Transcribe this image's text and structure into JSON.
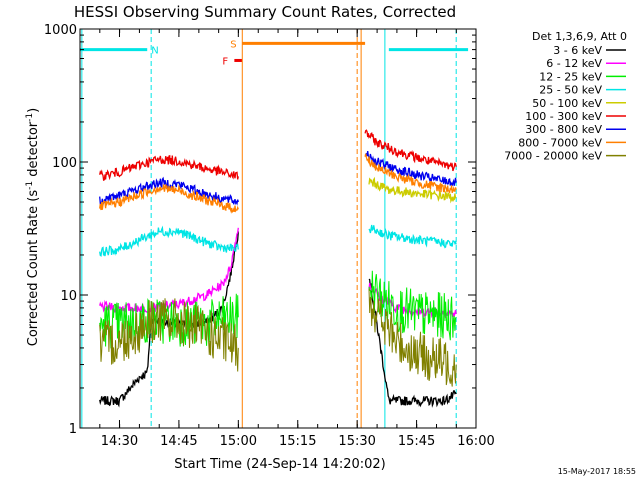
{
  "chart_data": {
    "type": "line",
    "title": "HESSI Observing Summary Count Rates, Corrected",
    "xlabel": "Start Time (24-Sep-14 14:20:02)",
    "ylabel": "Corrected Count Rate (s",
    "ylabel_sup1": "-1",
    "ylabel_mid": " detector",
    "ylabel_sup2": "-1",
    "ylabel_end": ")",
    "yscale": "log",
    "ylim": [
      1,
      1000
    ],
    "xlim": [
      "14:20:02",
      "16:00:00"
    ],
    "x_ticks": [
      "14:30",
      "14:45",
      "15:00",
      "15:15",
      "15:30",
      "15:45",
      "16:00"
    ],
    "y_ticks": [
      "1",
      "10",
      "100",
      "1000"
    ],
    "legend_header": "Det 1,3,6,9, Att 0",
    "legend_placement": "right",
    "timestamp": "15-May-2017 18:55",
    "flags": [
      {
        "label": "N",
        "color": "#00e5e5",
        "y": 700,
        "segments": [
          [
            "14:20",
            "14:37"
          ],
          [
            "15:38",
            "15:58"
          ]
        ]
      },
      {
        "label": "S",
        "color": "#ff7f00",
        "y": 780,
        "segments": [
          [
            "15:01",
            "15:32"
          ]
        ]
      },
      {
        "label": "F",
        "color": "#ee0000",
        "y": 580,
        "segments": [
          [
            "14:59",
            "15:01"
          ]
        ]
      }
    ],
    "time_markers": [
      {
        "time": "14:20:30",
        "color": "#00e5e5",
        "style": "solid"
      },
      {
        "time": "14:38",
        "color": "#00e5e5",
        "style": "dashed"
      },
      {
        "time": "15:01",
        "color": "#ff7f00",
        "style": "solid"
      },
      {
        "time": "15:30",
        "color": "#ff7f00",
        "style": "dashed"
      },
      {
        "time": "15:31",
        "color": "#ff7f00",
        "style": "solid"
      },
      {
        "time": "15:37",
        "color": "#00e5e5",
        "style": "solid"
      },
      {
        "time": "15:55",
        "color": "#00e5e5",
        "style": "dashed"
      }
    ],
    "series": [
      {
        "name": "3 - 6 keV",
        "color": "#000000",
        "points": [
          [
            "14:25",
            1.6
          ],
          [
            "14:30",
            1.6
          ],
          [
            "14:35",
            2.4
          ],
          [
            "14:37",
            2.6
          ],
          [
            "14:38",
            6.5
          ],
          [
            "14:45",
            6.0
          ],
          [
            "14:52",
            6.2
          ],
          [
            "14:56",
            8.0
          ],
          [
            "14:58",
            14
          ],
          [
            "15:00",
            30
          ],
          [
            "15:33",
            14
          ],
          [
            "15:35",
            6
          ],
          [
            "15:37",
            2.5
          ],
          [
            "15:38",
            1.6
          ],
          [
            "15:45",
            1.6
          ],
          [
            "15:52",
            1.6
          ],
          [
            "15:55",
            1.8
          ]
        ]
      },
      {
        "name": "6 - 12 keV",
        "color": "#ff00ff",
        "points": [
          [
            "14:25",
            8.2
          ],
          [
            "14:30",
            8.0
          ],
          [
            "14:38",
            8.0
          ],
          [
            "14:45",
            8.5
          ],
          [
            "14:52",
            10
          ],
          [
            "14:56",
            12
          ],
          [
            "14:58",
            16
          ],
          [
            "15:00",
            32
          ],
          [
            "15:33",
            12
          ],
          [
            "15:36",
            9.5
          ],
          [
            "15:40",
            8
          ],
          [
            "15:45",
            7.5
          ],
          [
            "15:50",
            7.5
          ],
          [
            "15:55",
            7.2
          ]
        ]
      },
      {
        "name": "12 - 25 keV",
        "color": "#00ee00",
        "points": [
          [
            "14:25",
            6.0
          ],
          [
            "14:30",
            6.0
          ],
          [
            "14:38",
            6.5
          ],
          [
            "14:45",
            6.2
          ],
          [
            "14:52",
            6.0
          ],
          [
            "14:56",
            6.5
          ],
          [
            "15:00",
            6.8
          ],
          [
            "15:33",
            12
          ],
          [
            "15:36",
            9.5
          ],
          [
            "15:40",
            8
          ],
          [
            "15:45",
            7.2
          ],
          [
            "15:50",
            7.0
          ],
          [
            "15:55",
            6.8
          ]
        ]
      },
      {
        "name": "25 - 50 keV",
        "color": "#00e5e5",
        "points": [
          [
            "14:25",
            21
          ],
          [
            "14:30",
            22
          ],
          [
            "14:35",
            26
          ],
          [
            "14:40",
            30
          ],
          [
            "14:45",
            30
          ],
          [
            "14:50",
            26
          ],
          [
            "14:55",
            23
          ],
          [
            "15:00",
            22
          ],
          [
            "15:33",
            32
          ],
          [
            "15:38",
            28
          ],
          [
            "15:45",
            26
          ],
          [
            "15:50",
            25
          ],
          [
            "15:55",
            24
          ]
        ]
      },
      {
        "name": "50 - 100 keV",
        "color": "#cccc00",
        "points": [
          [
            "15:33",
            72
          ],
          [
            "15:38",
            62
          ],
          [
            "15:45",
            58
          ],
          [
            "15:50",
            56
          ],
          [
            "15:55",
            54
          ]
        ]
      },
      {
        "name": "100 - 300 keV",
        "color": "#ee0000",
        "points": [
          [
            "14:25",
            78
          ],
          [
            "14:30",
            84
          ],
          [
            "14:35",
            95
          ],
          [
            "14:40",
            105
          ],
          [
            "14:45",
            102
          ],
          [
            "14:50",
            92
          ],
          [
            "14:55",
            85
          ],
          [
            "15:00",
            78
          ],
          [
            "15:32",
            170
          ],
          [
            "15:35",
            140
          ],
          [
            "15:40",
            120
          ],
          [
            "15:45",
            108
          ],
          [
            "15:50",
            98
          ],
          [
            "15:55",
            92
          ]
        ]
      },
      {
        "name": "300 - 800 keV",
        "color": "#0000ee",
        "points": [
          [
            "14:25",
            52
          ],
          [
            "14:30",
            56
          ],
          [
            "14:35",
            63
          ],
          [
            "14:40",
            70
          ],
          [
            "14:45",
            68
          ],
          [
            "14:50",
            60
          ],
          [
            "14:55",
            54
          ],
          [
            "15:00",
            50
          ],
          [
            "15:32",
            120
          ],
          [
            "15:35",
            100
          ],
          [
            "15:40",
            88
          ],
          [
            "15:45",
            80
          ],
          [
            "15:50",
            74
          ],
          [
            "15:55",
            70
          ]
        ]
      },
      {
        "name": "800 - 7000 keV",
        "color": "#ff7f00",
        "points": [
          [
            "14:25",
            46
          ],
          [
            "14:30",
            50
          ],
          [
            "14:35",
            57
          ],
          [
            "14:40",
            64
          ],
          [
            "14:45",
            61
          ],
          [
            "14:50",
            54
          ],
          [
            "14:55",
            48
          ],
          [
            "15:00",
            44
          ],
          [
            "15:32",
            110
          ],
          [
            "15:35",
            90
          ],
          [
            "15:40",
            78
          ],
          [
            "15:45",
            70
          ],
          [
            "15:50",
            65
          ],
          [
            "15:55",
            62
          ]
        ]
      },
      {
        "name": "7000 - 20000 keV",
        "color": "#808000",
        "points": [
          [
            "14:25",
            4.2
          ],
          [
            "14:30",
            4.5
          ],
          [
            "14:35",
            5.5
          ],
          [
            "14:38",
            6.5
          ],
          [
            "14:45",
            6.3
          ],
          [
            "14:52",
            5.2
          ],
          [
            "14:56",
            4.5
          ],
          [
            "15:00",
            4.0
          ],
          [
            "15:33",
            9.5
          ],
          [
            "15:36",
            6.5
          ],
          [
            "15:40",
            4.5
          ],
          [
            "15:45",
            3.6
          ],
          [
            "15:50",
            3.2
          ],
          [
            "15:55",
            3.0
          ]
        ]
      }
    ]
  }
}
